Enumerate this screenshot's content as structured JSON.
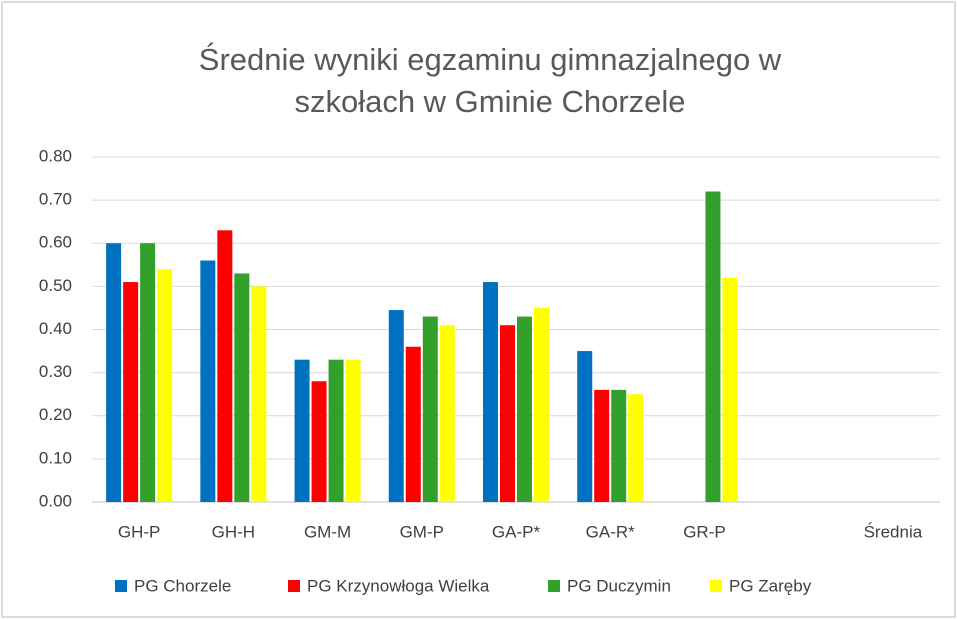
{
  "chart_data": {
    "type": "bar",
    "title": [
      "Średnie wyniki egzaminu gimnazjalnego w",
      "szkołach w Gminie Chorzele"
    ],
    "categories": [
      "GH-P",
      "GH-H",
      "GM-M",
      "GM-P",
      "GA-P*",
      "GA-R*",
      "GR-P",
      null,
      "Średnia"
    ],
    "series": [
      {
        "name": "PG Chorzele",
        "color": "#0070c0",
        "values": [
          0.6,
          0.56,
          0.33,
          0.445,
          0.51,
          0.35,
          null,
          null,
          null
        ]
      },
      {
        "name": "PG Krzynowłoga Wielka",
        "color": "#ff0000",
        "values": [
          0.51,
          0.63,
          0.28,
          0.36,
          0.41,
          0.26,
          null,
          null,
          null
        ]
      },
      {
        "name": "PG Duczymin",
        "color": "#33a02c",
        "values": [
          0.6,
          0.53,
          0.33,
          0.43,
          0.43,
          0.26,
          0.72,
          null,
          null
        ]
      },
      {
        "name": "PG Zaręby",
        "color": "#ffff00",
        "values": [
          0.54,
          0.5,
          0.33,
          0.41,
          0.45,
          0.25,
          0.52,
          null,
          null
        ]
      }
    ],
    "ylim": [
      0,
      0.8
    ],
    "yticks": [
      {
        "value": 0,
        "label": "0.00"
      },
      {
        "value": 0.1,
        "label": "0.10"
      },
      {
        "value": 0.2,
        "label": "0.20"
      },
      {
        "value": 0.3,
        "label": "0.30"
      },
      {
        "value": 0.4,
        "label": "0.40"
      },
      {
        "value": 0.5,
        "label": "0.50"
      },
      {
        "value": 0.6,
        "label": "0.60"
      },
      {
        "value": 0.7,
        "label": "0.70"
      },
      {
        "value": 0.8,
        "label": "0.80"
      }
    ],
    "grid": true,
    "legend": "bottom"
  }
}
